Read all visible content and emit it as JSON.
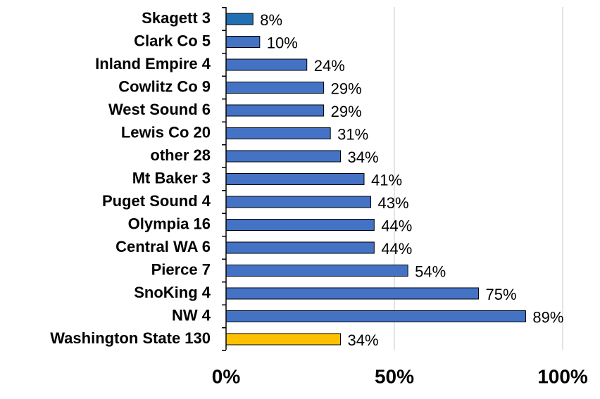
{
  "chart_data": {
    "type": "bar",
    "orientation": "horizontal",
    "categories": [
      "Skagett 3",
      "Clark Co 5",
      "Inland Empire 4",
      "Cowlitz Co 9",
      "West Sound 6",
      "Lewis Co 20",
      "other 28",
      "Mt Baker 3",
      "Puget Sound 4",
      "Olympia 16",
      "Central WA 6",
      "Pierce 7",
      "SnoKing 4",
      "NW 4",
      "Washington State 130"
    ],
    "values": [
      8,
      10,
      24,
      29,
      29,
      31,
      34,
      41,
      43,
      44,
      44,
      54,
      75,
      89,
      34
    ],
    "data_labels": [
      "8%",
      "10%",
      "24%",
      "29%",
      "29%",
      "31%",
      "34%",
      "41%",
      "43%",
      "44%",
      "44%",
      "54%",
      "75%",
      "89%",
      "34%"
    ],
    "bar_colors": [
      "#1f6fb2",
      "#4472c4",
      "#4472c4",
      "#4472c4",
      "#4472c4",
      "#4472c4",
      "#4472c4",
      "#4472c4",
      "#4472c4",
      "#4472c4",
      "#4472c4",
      "#4472c4",
      "#4472c4",
      "#4472c4",
      "#ffc000"
    ],
    "xlim": [
      0,
      100
    ],
    "x_ticks": [
      0,
      50,
      100
    ],
    "x_tick_labels": [
      "0%",
      "50%",
      "100%"
    ],
    "title": "",
    "xlabel": "",
    "ylabel": "",
    "grid": "vertical",
    "legend": "none"
  }
}
